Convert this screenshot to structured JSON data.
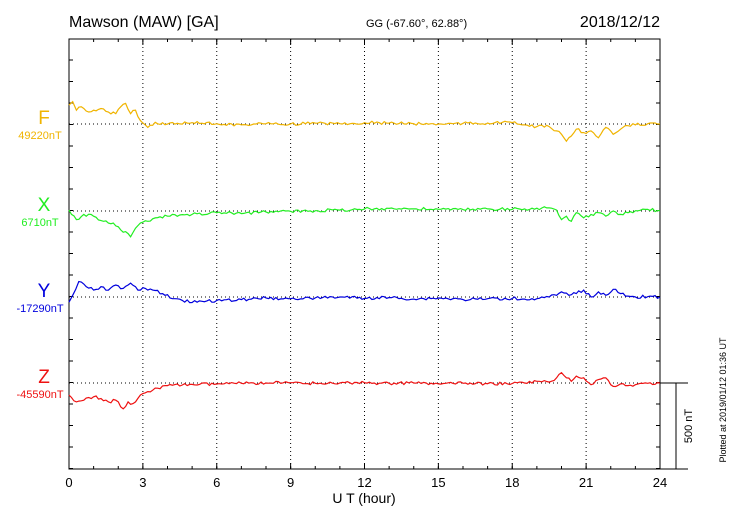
{
  "header": {
    "station": "Mawson (MAW)  [GA]",
    "coords": "GG (-67.60°,  62.88°)",
    "date": "2018/12/12"
  },
  "plotted_note": "Plotted at 2019/01/12 01:36 UT",
  "chart_data": {
    "type": "line",
    "xlabel": "U T (hour)",
    "xlim": [
      0,
      24
    ],
    "xticks": [
      "0",
      "3",
      "6",
      "9",
      "12",
      "15",
      "18",
      "21",
      "24"
    ],
    "scale_bar": {
      "label": "500 nT",
      "value": 500
    },
    "series": [
      {
        "name": "F",
        "baseline_label": "49220nT",
        "baseline": 49220,
        "color": "#f0b400",
        "x": [
          0,
          0.15,
          0.3,
          0.5,
          0.8,
          1.0,
          1.3,
          1.6,
          1.9,
          2.1,
          2.3,
          2.5,
          2.7,
          2.9,
          3.2,
          3.5,
          4,
          5,
          6,
          7,
          8,
          9,
          10,
          11,
          12,
          13,
          14,
          15,
          16,
          17,
          18,
          18.5,
          19,
          19.5,
          19.8,
          20.0,
          20.2,
          20.4,
          20.6,
          20.9,
          21.2,
          21.5,
          21.8,
          22.1,
          22.4,
          22.7,
          23,
          23.5,
          24
        ],
        "y": [
          49330,
          49350,
          49300,
          49320,
          49290,
          49300,
          49310,
          49290,
          49280,
          49320,
          49340,
          49280,
          49300,
          49240,
          49200,
          49230,
          49220,
          49228,
          49222,
          49215,
          49222,
          49220,
          49225,
          49222,
          49228,
          49225,
          49222,
          49220,
          49224,
          49226,
          49228,
          49215,
          49205,
          49205,
          49180,
          49160,
          49120,
          49150,
          49190,
          49170,
          49180,
          49140,
          49200,
          49160,
          49190,
          49210,
          49215,
          49222,
          49220
        ]
      },
      {
        "name": "X",
        "baseline_label": "6710nT",
        "baseline": 6710,
        "color": "#22ee22",
        "x": [
          0,
          0.3,
          0.6,
          1.0,
          1.4,
          1.8,
          2.1,
          2.3,
          2.5,
          2.7,
          2.9,
          3.2,
          3.5,
          4,
          5,
          6,
          7,
          8,
          9,
          10,
          11,
          12,
          13,
          14,
          15,
          16,
          17,
          18,
          18.5,
          19,
          19.5,
          19.8,
          20.0,
          20.2,
          20.4,
          20.6,
          20.9,
          21.2,
          21.5,
          21.8,
          22.1,
          22.4,
          22.7,
          23,
          23.5,
          24
        ],
        "y": [
          6715,
          6660,
          6690,
          6680,
          6650,
          6640,
          6600,
          6590,
          6560,
          6610,
          6640,
          6650,
          6670,
          6680,
          6690,
          6700,
          6695,
          6705,
          6708,
          6712,
          6715,
          6722,
          6725,
          6722,
          6720,
          6718,
          6722,
          6720,
          6722,
          6726,
          6728,
          6715,
          6660,
          6680,
          6650,
          6700,
          6670,
          6690,
          6700,
          6680,
          6710,
          6690,
          6700,
          6712,
          6720,
          6712
        ]
      },
      {
        "name": "Y",
        "baseline_label": "-17290nT",
        "baseline": -17290,
        "color": "#0000dd",
        "x": [
          0,
          0.15,
          0.4,
          0.7,
          1.0,
          1.3,
          1.6,
          1.9,
          2.2,
          2.5,
          2.8,
          3.1,
          3.4,
          3.8,
          4.2,
          4.6,
          5.2,
          6,
          7,
          8,
          9,
          10,
          11,
          12,
          13,
          14,
          15,
          16,
          17,
          18,
          18.5,
          19,
          19.5,
          19.8,
          20.0,
          20.3,
          20.6,
          20.9,
          21.2,
          21.5,
          21.8,
          22.1,
          22.4,
          22.7,
          23,
          23.5,
          24
        ],
        "y": [
          -17320,
          -17280,
          -17200,
          -17230,
          -17250,
          -17230,
          -17250,
          -17220,
          -17240,
          -17210,
          -17250,
          -17240,
          -17250,
          -17270,
          -17300,
          -17310,
          -17320,
          -17310,
          -17305,
          -17295,
          -17300,
          -17295,
          -17290,
          -17298,
          -17293,
          -17302,
          -17296,
          -17305,
          -17300,
          -17298,
          -17302,
          -17300,
          -17290,
          -17280,
          -17260,
          -17280,
          -17270,
          -17250,
          -17290,
          -17260,
          -17280,
          -17245,
          -17270,
          -17285,
          -17290,
          -17288,
          -17290
        ]
      },
      {
        "name": "Z",
        "baseline_label": "-45590nT",
        "baseline": -45590,
        "color": "#ee1111",
        "x": [
          0,
          0.3,
          0.6,
          1.0,
          1.3,
          1.6,
          1.9,
          2.2,
          2.4,
          2.6,
          2.9,
          3.2,
          3.6,
          4,
          5,
          6,
          7,
          8,
          9,
          10,
          11,
          12,
          13,
          14,
          15,
          16,
          17,
          18,
          18.5,
          19,
          19.5,
          19.8,
          20.0,
          20.2,
          20.4,
          20.6,
          20.9,
          21.2,
          21.5,
          21.8,
          22.1,
          22.4,
          22.7,
          23,
          23.5,
          24
        ],
        "y": [
          -45660,
          -45700,
          -45690,
          -45670,
          -45680,
          -45700,
          -45690,
          -45740,
          -45700,
          -45710,
          -45660,
          -45640,
          -45620,
          -45605,
          -45598,
          -45596,
          -45592,
          -45590,
          -45588,
          -45592,
          -45590,
          -45588,
          -45592,
          -45590,
          -45595,
          -45592,
          -45594,
          -45593,
          -45590,
          -45580,
          -45585,
          -45560,
          -45530,
          -45560,
          -45580,
          -45550,
          -45560,
          -45600,
          -45570,
          -45560,
          -45610,
          -45595,
          -45605,
          -45600,
          -45592,
          -45592
        ]
      }
    ]
  }
}
